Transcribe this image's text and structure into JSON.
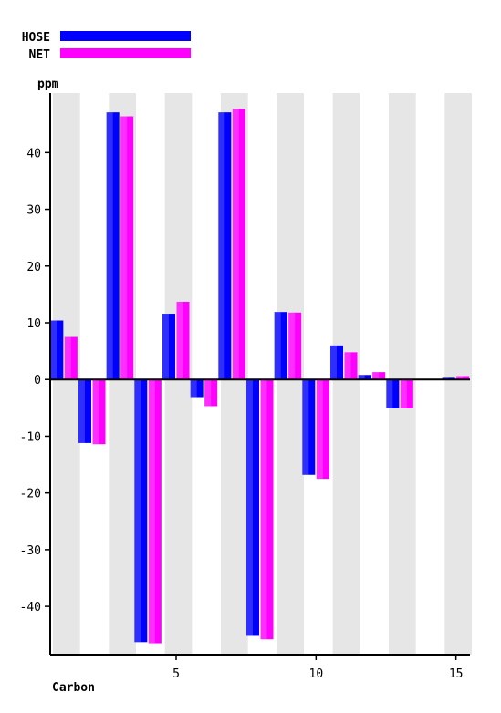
{
  "chart_data": {
    "type": "bar",
    "xlabel": "Carbon",
    "ylabel": "ppm",
    "categories": [
      1,
      2,
      3,
      4,
      5,
      6,
      7,
      8,
      9,
      10,
      11,
      12,
      13,
      14,
      15
    ],
    "x_ticks": [
      5,
      10,
      15
    ],
    "y_ticks": [
      -40,
      -30,
      -20,
      -10,
      0,
      10,
      20,
      30,
      40
    ],
    "ylim": [
      -48.5,
      50.5
    ],
    "grid": "alternating vertical bands",
    "legend_position": "top-left",
    "series": [
      {
        "name": "HOSE",
        "color": "#0000ff",
        "values": [
          10.4,
          -11.2,
          47.1,
          -46.3,
          11.6,
          -3.1,
          47.1,
          -45.2,
          11.9,
          -16.8,
          6.0,
          0.8,
          -5.1,
          0.0,
          0.3
        ]
      },
      {
        "name": "NET",
        "color": "#ff00ff",
        "values": [
          7.5,
          -11.4,
          46.4,
          -46.5,
          13.7,
          -4.7,
          47.7,
          -45.8,
          11.8,
          -17.5,
          4.8,
          1.3,
          -5.1,
          0.0,
          0.6
        ]
      }
    ],
    "band_color": "#e6e6e6"
  }
}
